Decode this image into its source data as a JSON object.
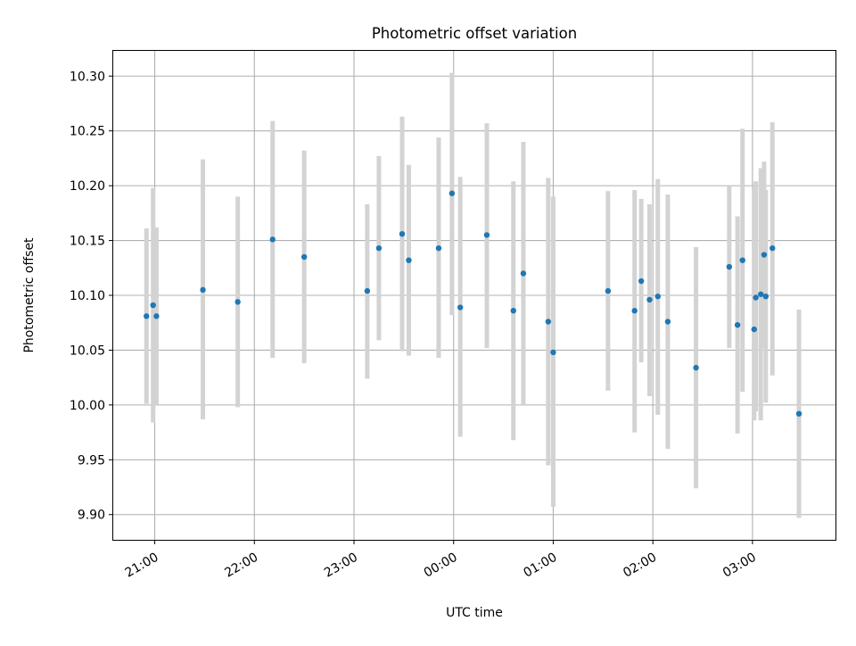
{
  "chart_data": {
    "type": "scatter",
    "title": "Photometric offset variation",
    "xlabel": "UTC time",
    "ylabel": "Photometric offset",
    "x_axis_type": "time",
    "xlim": [
      "20:35",
      "03:50"
    ],
    "ylim": [
      9.877,
      10.323
    ],
    "grid": true,
    "x_ticks": [
      "21:00",
      "22:00",
      "23:00",
      "00:00",
      "01:00",
      "02:00",
      "03:00"
    ],
    "y_ticks": [
      "9.90",
      "9.95",
      "10.00",
      "10.05",
      "10.10",
      "10.15",
      "10.20",
      "10.25",
      "10.30"
    ],
    "colors": {
      "marker": "#1f77b4",
      "errorbar": "#d3d3d3",
      "grid": "#b0b0b0"
    },
    "series": [
      {
        "marker": "point",
        "points": [
          {
            "x": "20:55",
            "y": 10.081,
            "ylo": 10.001,
            "yhi": 10.161
          },
          {
            "x": "20:59",
            "y": 10.091,
            "ylo": 9.984,
            "yhi": 10.198
          },
          {
            "x": "21:01",
            "y": 10.081,
            "ylo": 10.0,
            "yhi": 10.162
          },
          {
            "x": "21:29",
            "y": 10.105,
            "ylo": 9.987,
            "yhi": 10.224
          },
          {
            "x": "21:50",
            "y": 10.094,
            "ylo": 9.998,
            "yhi": 10.19
          },
          {
            "x": "22:11",
            "y": 10.151,
            "ylo": 10.043,
            "yhi": 10.259
          },
          {
            "x": "22:30",
            "y": 10.135,
            "ylo": 10.038,
            "yhi": 10.232
          },
          {
            "x": "23:08",
            "y": 10.104,
            "ylo": 10.024,
            "yhi": 10.183
          },
          {
            "x": "23:15",
            "y": 10.143,
            "ylo": 10.059,
            "yhi": 10.227
          },
          {
            "x": "23:29",
            "y": 10.156,
            "ylo": 10.049,
            "yhi": 10.263
          },
          {
            "x": "23:33",
            "y": 10.132,
            "ylo": 10.045,
            "yhi": 10.219
          },
          {
            "x": "23:51",
            "y": 10.143,
            "ylo": 10.043,
            "yhi": 10.244
          },
          {
            "x": "23:59",
            "y": 10.193,
            "ylo": 10.082,
            "yhi": 10.303
          },
          {
            "x": "00:04",
            "y": 10.089,
            "ylo": 9.971,
            "yhi": 10.208
          },
          {
            "x": "00:20",
            "y": 10.155,
            "ylo": 10.052,
            "yhi": 10.257
          },
          {
            "x": "00:36",
            "y": 10.086,
            "ylo": 9.968,
            "yhi": 10.204
          },
          {
            "x": "00:42",
            "y": 10.12,
            "ylo": 10.0,
            "yhi": 10.24
          },
          {
            "x": "00:57",
            "y": 10.076,
            "ylo": 9.945,
            "yhi": 10.207
          },
          {
            "x": "01:00",
            "y": 10.048,
            "ylo": 9.907,
            "yhi": 10.19
          },
          {
            "x": "01:33",
            "y": 10.104,
            "ylo": 10.013,
            "yhi": 10.195
          },
          {
            "x": "01:49",
            "y": 10.086,
            "ylo": 9.975,
            "yhi": 10.196
          },
          {
            "x": "01:53",
            "y": 10.113,
            "ylo": 10.039,
            "yhi": 10.188
          },
          {
            "x": "01:58",
            "y": 10.096,
            "ylo": 10.008,
            "yhi": 10.183
          },
          {
            "x": "02:03",
            "y": 10.099,
            "ylo": 9.991,
            "yhi": 10.206
          },
          {
            "x": "02:09",
            "y": 10.076,
            "ylo": 9.96,
            "yhi": 10.192
          },
          {
            "x": "02:26",
            "y": 10.034,
            "ylo": 9.924,
            "yhi": 10.144
          },
          {
            "x": "02:46",
            "y": 10.126,
            "ylo": 10.052,
            "yhi": 10.2
          },
          {
            "x": "02:51",
            "y": 10.073,
            "ylo": 9.974,
            "yhi": 10.172
          },
          {
            "x": "02:54",
            "y": 10.132,
            "ylo": 10.012,
            "yhi": 10.252
          },
          {
            "x": "03:01",
            "y": 10.069,
            "ylo": 9.986,
            "yhi": 10.199
          },
          {
            "x": "03:02",
            "y": 10.098,
            "ylo": 9.994,
            "yhi": 10.204
          },
          {
            "x": "03:05",
            "y": 10.101,
            "ylo": 9.986,
            "yhi": 10.216
          },
          {
            "x": "03:07",
            "y": 10.137,
            "ylo": 10.052,
            "yhi": 10.222
          },
          {
            "x": "03:08",
            "y": 10.099,
            "ylo": 10.002,
            "yhi": 10.196
          },
          {
            "x": "03:12",
            "y": 10.143,
            "ylo": 10.027,
            "yhi": 10.258
          },
          {
            "x": "03:28",
            "y": 9.992,
            "ylo": 9.897,
            "yhi": 10.087
          }
        ]
      }
    ]
  }
}
